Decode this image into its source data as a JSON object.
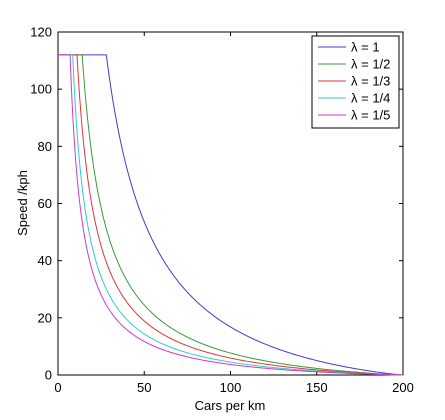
{
  "chart_data": {
    "type": "line",
    "title": "",
    "xlabel": "Cars per km",
    "ylabel": "Speed /kph",
    "xlim": [
      0,
      200
    ],
    "ylim": [
      0,
      120
    ],
    "x_ticks": [
      0,
      50,
      100,
      150,
      200
    ],
    "y_ticks": [
      0,
      20,
      40,
      60,
      80,
      100,
      120
    ],
    "grid": false,
    "legend_position": "top-right",
    "speed_cap": 112,
    "jam_density": 200,
    "series": [
      {
        "name": "λ = 1",
        "color": "#3d3dd6",
        "lambda": 1,
        "cap_start": 0,
        "cap_end": 28
      },
      {
        "name": "λ = 1/2",
        "color": "#3a9a3a",
        "lambda": 0.5,
        "cap_start": 0,
        "cap_end": 14
      },
      {
        "name": "λ = 1/3",
        "color": "#e03535",
        "lambda": 0.3333,
        "cap_start": 0,
        "cap_end": 11
      },
      {
        "name": "λ = 1/4",
        "color": "#34c9d1",
        "lambda": 0.25,
        "cap_start": 0,
        "cap_end": 8.5
      },
      {
        "name": "λ = 1/5",
        "color": "#cc3acc",
        "lambda": 0.2,
        "cap_start": 0,
        "cap_end": 7
      }
    ]
  }
}
